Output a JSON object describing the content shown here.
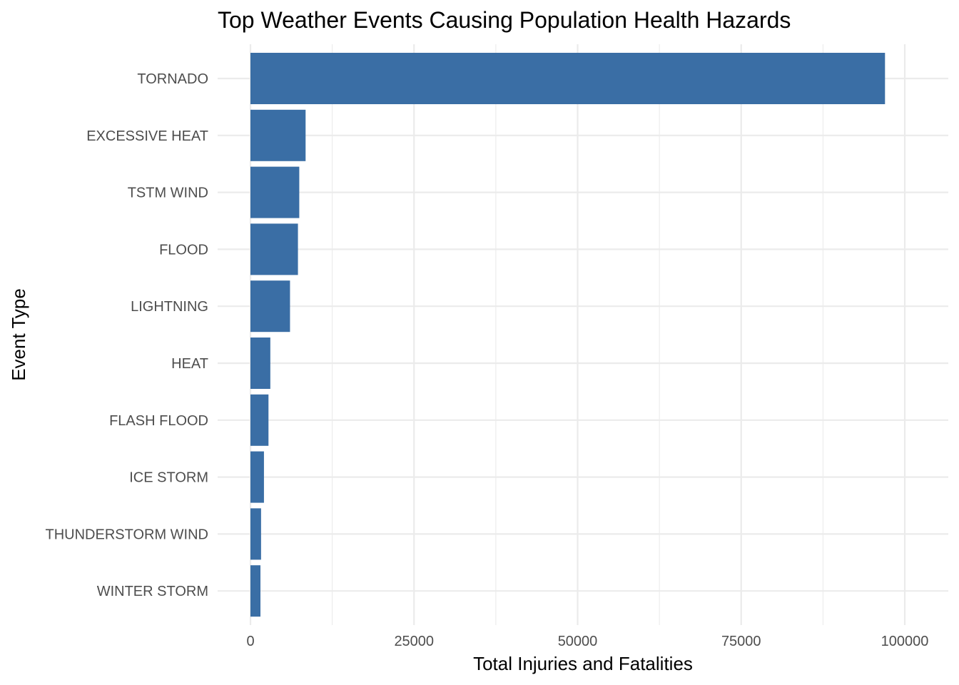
{
  "chart_data": {
    "type": "bar",
    "orientation": "horizontal",
    "title": "Top Weather Events Causing Population Health Hazards",
    "xlabel": "Total Injuries and Fatalities",
    "ylabel": "Event Type",
    "categories": [
      "TORNADO",
      "EXCESSIVE HEAT",
      "TSTM WIND",
      "FLOOD",
      "LIGHTNING",
      "HEAT",
      "FLASH FLOOD",
      "ICE STORM",
      "THUNDERSTORM WIND",
      "WINTER STORM"
    ],
    "values": [
      96979,
      8428,
      7461,
      7259,
      6046,
      3037,
      2755,
      2064,
      1621,
      1527
    ],
    "xlim": [
      0,
      100000
    ],
    "x_ticks": [
      "0",
      "25000",
      "50000",
      "75000",
      "100000"
    ],
    "x_tick_values": [
      0,
      25000,
      50000,
      75000,
      100000
    ],
    "grid": true,
    "bar_color": "#3A6EA5",
    "grid_color": "#EBEBEB"
  }
}
